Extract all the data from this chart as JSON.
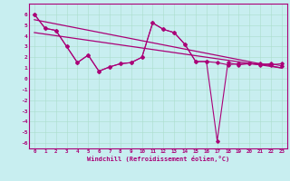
{
  "xlabel": "Windchill (Refroidissement éolien,°C)",
  "bg_color": "#c8eef0",
  "line_color": "#aa0077",
  "ylim": [
    -6.5,
    7.0
  ],
  "xlim": [
    -0.5,
    23.5
  ],
  "x": [
    0,
    1,
    2,
    3,
    4,
    5,
    6,
    7,
    8,
    9,
    10,
    11,
    12,
    13,
    14,
    15,
    16,
    17,
    18,
    19,
    20,
    21,
    22,
    23
  ],
  "series1": [
    6.0,
    4.7,
    4.5,
    3.0,
    1.5,
    2.2,
    0.7,
    1.1,
    1.4,
    1.5,
    2.0,
    5.2,
    4.6,
    4.3,
    3.2,
    1.6,
    1.6,
    1.5,
    1.3,
    1.4,
    1.4,
    1.3,
    1.4,
    1.2
  ],
  "series2": [
    6.0,
    4.7,
    4.5,
    3.0,
    1.5,
    2.2,
    0.7,
    1.1,
    1.4,
    1.5,
    2.0,
    5.2,
    4.6,
    4.3,
    3.2,
    1.6,
    1.6,
    -5.8,
    1.5,
    1.3,
    1.4,
    1.4,
    1.3,
    1.4
  ],
  "trend1_x": [
    0,
    23
  ],
  "trend1_y": [
    5.5,
    1.0
  ],
  "trend2_x": [
    0,
    23
  ],
  "trend2_y": [
    4.3,
    1.0
  ],
  "yticks": [
    6,
    5,
    4,
    3,
    2,
    1,
    0,
    -1,
    -2,
    -3,
    -4,
    -5,
    -6
  ],
  "xticks": [
    0,
    1,
    2,
    3,
    4,
    5,
    6,
    7,
    8,
    9,
    10,
    11,
    12,
    13,
    14,
    15,
    16,
    17,
    18,
    19,
    20,
    21,
    22,
    23
  ],
  "xtick_labels": [
    "0",
    "1",
    "2",
    "3",
    "4",
    "5",
    "6",
    "7",
    "8",
    "9",
    "10",
    "11",
    "12",
    "13",
    "14",
    "15",
    "16",
    "17",
    "18",
    "19",
    "20",
    "21",
    "22",
    "23"
  ],
  "grid_color": "#aaddcc",
  "marker": "D",
  "markersize": 1.8,
  "linewidth": 0.8
}
